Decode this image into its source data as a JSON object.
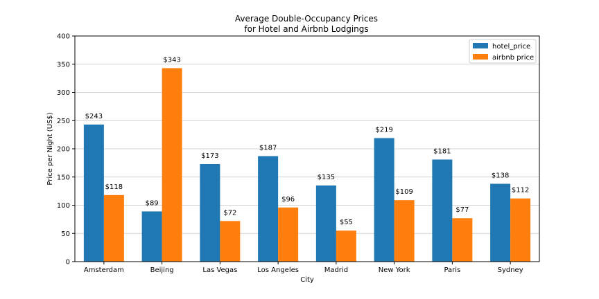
{
  "chart_data": {
    "type": "bar",
    "title_line1": "Average Double-Occupancy Prices",
    "title_line2": "for Hotel and Airbnb Lodgings",
    "xlabel": "City",
    "ylabel": "Price per Night (US$)",
    "ylim": [
      0,
      400
    ],
    "yticks": [
      "0",
      "50",
      "100",
      "150",
      "200",
      "250",
      "300",
      "350",
      "400"
    ],
    "grid": "horizontal",
    "legend_position": "top-right",
    "categories": [
      "Amsterdam",
      "Beijing",
      "Las Vegas",
      "Los Angeles",
      "Madrid",
      "New York",
      "Paris",
      "Sydney"
    ],
    "series": [
      {
        "name": "hotel_price",
        "color": "#1f77b4",
        "values": [
          243,
          89,
          173,
          187,
          135,
          219,
          181,
          138
        ],
        "labels": [
          "$243",
          "$89",
          "$173",
          "$187",
          "$135",
          "$219",
          "$181",
          "$138"
        ]
      },
      {
        "name": "airbnb price",
        "color": "#ff7f0e",
        "values": [
          118,
          343,
          72,
          96,
          55,
          109,
          77,
          112
        ],
        "labels": [
          "$118",
          "$343",
          "$72",
          "$96",
          "$55",
          "$109",
          "$77",
          "$112"
        ]
      }
    ]
  }
}
